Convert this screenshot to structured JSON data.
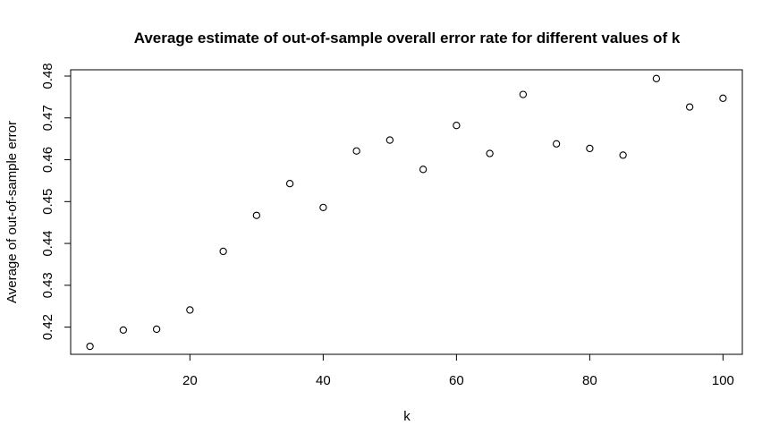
{
  "chart_data": {
    "type": "scatter",
    "title": "Average estimate of out-of-sample overall error rate for different values of k",
    "xlabel": "k",
    "ylabel": "Average of out-of-sample error",
    "xlim": [
      2.1,
      102.9
    ],
    "ylim": [
      0.4135,
      0.4815
    ],
    "xticks": [
      20,
      40,
      60,
      80,
      100
    ],
    "yticks": [
      0.42,
      0.43,
      0.44,
      0.45,
      0.46,
      0.47,
      0.48
    ],
    "xtick_labels": [
      "20",
      "40",
      "60",
      "80",
      "100"
    ],
    "ytick_labels": [
      "0.42",
      "0.43",
      "0.44",
      "0.45",
      "0.46",
      "0.47",
      "0.48"
    ],
    "grid": false,
    "marker": "open-circle",
    "colors": {
      "points": "#000000",
      "axes": "#000000",
      "background": "#ffffff"
    },
    "x": [
      5,
      10,
      15,
      20,
      25,
      30,
      35,
      40,
      45,
      50,
      55,
      60,
      65,
      70,
      75,
      80,
      85,
      90,
      95,
      100
    ],
    "y": [
      0.4154,
      0.4193,
      0.4195,
      0.4241,
      0.4381,
      0.4467,
      0.4543,
      0.4486,
      0.4621,
      0.4647,
      0.4577,
      0.4682,
      0.4615,
      0.4756,
      0.4638,
      0.4627,
      0.4611,
      0.4794,
      0.4726,
      0.4747
    ]
  }
}
